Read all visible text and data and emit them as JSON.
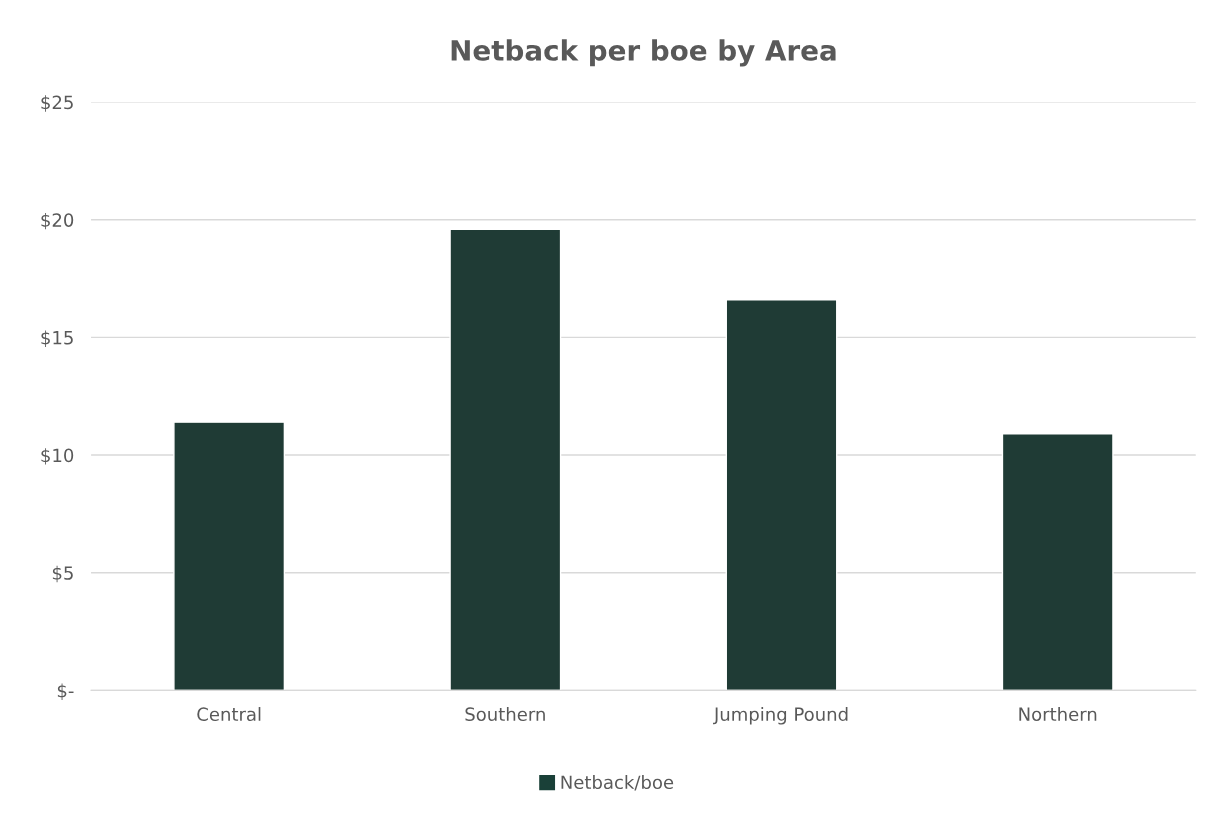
{
  "chart_data": {
    "type": "bar",
    "title": "Netback per boe by Area",
    "categories": [
      "Central",
      "Southern",
      "Jumping Pound",
      "Northern"
    ],
    "series": [
      {
        "name": "Netback/boe",
        "color": "#1a4038",
        "values": [
          11.4,
          19.6,
          16.6,
          10.9
        ]
      }
    ],
    "ylim": [
      0,
      25
    ],
    "yticks": [
      {
        "value": 0,
        "label": "$-"
      },
      {
        "value": 5,
        "label": "$5"
      },
      {
        "value": 10,
        "label": "$10"
      },
      {
        "value": 15,
        "label": "$15"
      },
      {
        "value": 20,
        "label": "$20"
      },
      {
        "value": 25,
        "label": "$25"
      }
    ],
    "grid": "y",
    "legend": "bottom"
  }
}
